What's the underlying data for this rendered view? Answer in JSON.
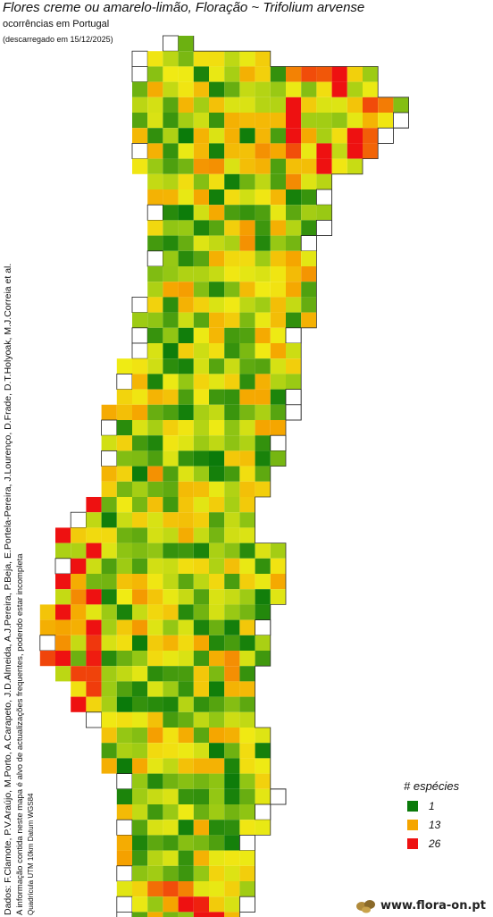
{
  "header": {
    "title": "Flores creme ou amarelo-limão, Floração ~ Trifolium arvense",
    "subtitle": "ocorrências em Portugal",
    "download_note": "(descarregado em 15/12/2025)"
  },
  "credits": {
    "line1": "Dados: F.Clamote, P.V.Araújo, M.Porto, A.Carapeto, J.D.Almeida, A.J.Pereira, P.Beja, E.Portela-Pereira, J.Lourenço, D.Frade, D.T.Holyoak, M.J.Correia et al.",
    "line2": "A informação contida neste mapa é alvo de actualizações frequentes, podendo estar incompleta",
    "line3": "Quadrícula UTM 10km Datum WGS84"
  },
  "legend": {
    "title": "# espécies",
    "items": [
      {
        "label": "1",
        "color": "#0a7a0a"
      },
      {
        "label": "13",
        "color": "#f5a500"
      },
      {
        "label": "26",
        "color": "#ee1111"
      }
    ]
  },
  "brand": {
    "text": "www.flora-on.pt",
    "icon": "leaf-logo-icon"
  },
  "map_data": {
    "grid": "UTM 10km",
    "color_scale": {
      "min": 1,
      "mid": 13,
      "max": 26,
      "colors": [
        "#0a7a0a",
        "#f5a500",
        "#ee1111"
      ]
    }
  }
}
